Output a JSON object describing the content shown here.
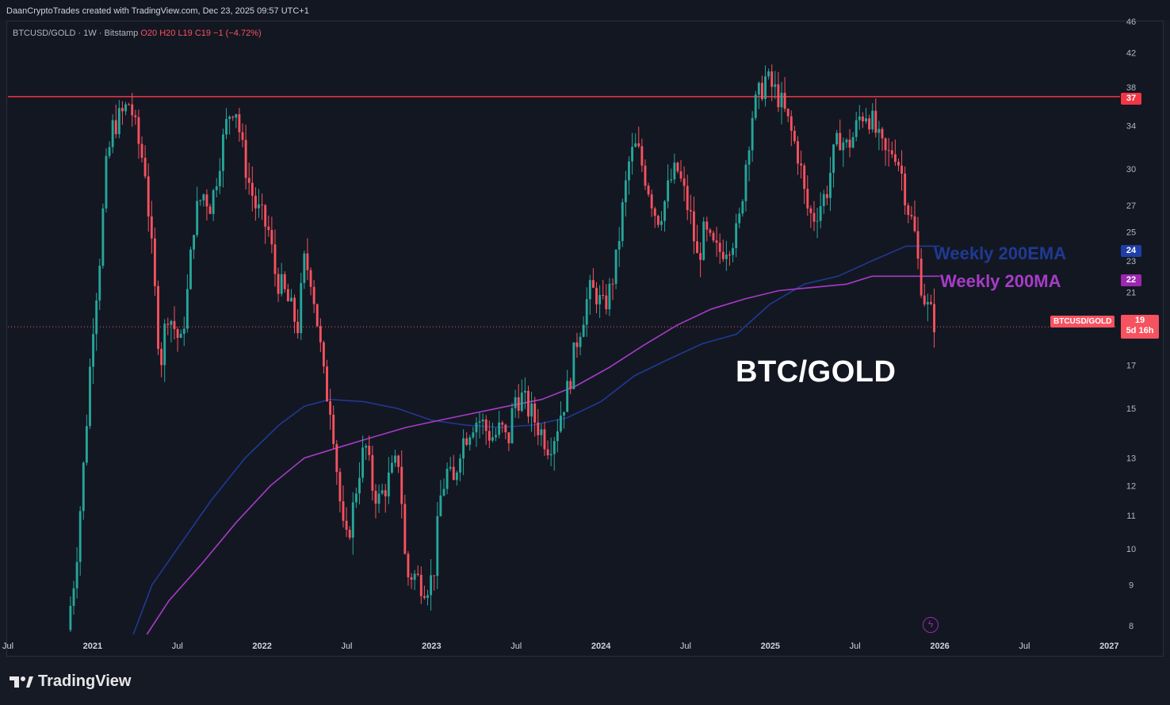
{
  "header": {
    "text": "DaanCryptoTrades created with TradingView.com, Dec 23, 2025 09:57 UTC+1"
  },
  "symbol_line": {
    "prefix": "BTCUSD/GOLD · 1W · Bitstamp",
    "ohlc": "O20  H20  L19  C19  −1 (−4.72%)"
  },
  "annotations": {
    "title": "BTC/GOLD",
    "ema_label": "Weekly 200EMA",
    "ma_label": "Weekly 200MA"
  },
  "price_tags": {
    "resistance": "37",
    "ema": "24",
    "ma": "22",
    "symbol": "BTCUSD/GOLD",
    "last": "19",
    "countdown": "5d 16h"
  },
  "footer": {
    "logo_text": "TradingView"
  },
  "icons": {
    "logo": "tradingview-logo-icon",
    "lightning": "lightning-icon"
  },
  "colors": {
    "up": "#26a69a",
    "down": "#f7525f",
    "resistance": "#f23645",
    "ema": "#1f3a93",
    "ma": "#a63cc7",
    "background": "#131722"
  },
  "chart_data": {
    "type": "candlestick",
    "timeframe": "1W",
    "yscale": "log",
    "ylim": [
      7.8,
      46
    ],
    "y_ticks": [
      8,
      9,
      10,
      11,
      12,
      13,
      15,
      17,
      19,
      21,
      23,
      25,
      27,
      30,
      34,
      38,
      42,
      46
    ],
    "x_ticks": [
      {
        "label": "Jul",
        "t": 2020.5
      },
      {
        "label": "2021",
        "t": 2021.0
      },
      {
        "label": "Jul",
        "t": 2021.5
      },
      {
        "label": "2022",
        "t": 2022.0
      },
      {
        "label": "Jul",
        "t": 2022.5
      },
      {
        "label": "2023",
        "t": 2023.0
      },
      {
        "label": "Jul",
        "t": 2023.5
      },
      {
        "label": "2024",
        "t": 2024.0
      },
      {
        "label": "Jul",
        "t": 2024.5
      },
      {
        "label": "2025",
        "t": 2025.0
      },
      {
        "label": "Jul",
        "t": 2025.5
      },
      {
        "label": "2026",
        "t": 2026.0
      },
      {
        "label": "Jul",
        "t": 2026.5
      },
      {
        "label": "2027",
        "t": 2027.0
      }
    ],
    "xlim": [
      2020.5,
      2027.05
    ],
    "resistance_level": 37,
    "last_price": 19,
    "price_path": [
      [
        2020.85,
        7.9
      ],
      [
        2020.9,
        9.5
      ],
      [
        2020.95,
        13
      ],
      [
        2021.0,
        19
      ],
      [
        2021.04,
        23
      ],
      [
        2021.08,
        30
      ],
      [
        2021.12,
        34
      ],
      [
        2021.17,
        35
      ],
      [
        2021.22,
        36.5
      ],
      [
        2021.26,
        33
      ],
      [
        2021.31,
        30
      ],
      [
        2021.36,
        22
      ],
      [
        2021.4,
        17
      ],
      [
        2021.44,
        20
      ],
      [
        2021.48,
        19
      ],
      [
        2021.52,
        18
      ],
      [
        2021.56,
        21
      ],
      [
        2021.6,
        26
      ],
      [
        2021.65,
        28
      ],
      [
        2021.7,
        27
      ],
      [
        2021.75,
        31
      ],
      [
        2021.8,
        35
      ],
      [
        2021.84,
        36.5
      ],
      [
        2021.88,
        32
      ],
      [
        2021.92,
        29
      ],
      [
        2021.96,
        27
      ],
      [
        2022.0,
        26
      ],
      [
        2022.04,
        25
      ],
      [
        2022.08,
        22
      ],
      [
        2022.13,
        21
      ],
      [
        2022.17,
        20
      ],
      [
        2022.21,
        19
      ],
      [
        2022.25,
        23
      ],
      [
        2022.29,
        22
      ],
      [
        2022.33,
        19
      ],
      [
        2022.37,
        16
      ],
      [
        2022.41,
        15
      ],
      [
        2022.45,
        12
      ],
      [
        2022.49,
        10
      ],
      [
        2022.53,
        11
      ],
      [
        2022.57,
        12.5
      ],
      [
        2022.61,
        13.5
      ],
      [
        2022.65,
        12
      ],
      [
        2022.69,
        11.5
      ],
      [
        2022.73,
        12
      ],
      [
        2022.77,
        12.5
      ],
      [
        2022.81,
        13
      ],
      [
        2022.85,
        9.2
      ],
      [
        2022.89,
        9.3
      ],
      [
        2022.93,
        9.1
      ],
      [
        2022.97,
        9.0
      ],
      [
        2023.01,
        9.2
      ],
      [
        2023.05,
        11.5
      ],
      [
        2023.09,
        12.5
      ],
      [
        2023.13,
        12
      ],
      [
        2023.17,
        13.5
      ],
      [
        2023.21,
        14
      ],
      [
        2023.25,
        14.5
      ],
      [
        2023.29,
        14.5
      ],
      [
        2023.33,
        14
      ],
      [
        2023.37,
        13.8
      ],
      [
        2023.41,
        14.2
      ],
      [
        2023.45,
        13.5
      ],
      [
        2023.49,
        15.5
      ],
      [
        2023.53,
        15.5
      ],
      [
        2023.57,
        15
      ],
      [
        2023.61,
        14.5
      ],
      [
        2023.65,
        14
      ],
      [
        2023.69,
        13.5
      ],
      [
        2023.73,
        14
      ],
      [
        2023.77,
        15
      ],
      [
        2023.81,
        16
      ],
      [
        2023.85,
        18
      ],
      [
        2023.89,
        19.5
      ],
      [
        2023.93,
        21
      ],
      [
        2023.97,
        21
      ],
      [
        2024.01,
        20
      ],
      [
        2024.05,
        21
      ],
      [
        2024.09,
        23
      ],
      [
        2024.13,
        27
      ],
      [
        2024.17,
        31
      ],
      [
        2024.21,
        32
      ],
      [
        2024.25,
        30
      ],
      [
        2024.29,
        28
      ],
      [
        2024.33,
        26
      ],
      [
        2024.37,
        27
      ],
      [
        2024.41,
        29
      ],
      [
        2024.45,
        30
      ],
      [
        2024.49,
        28
      ],
      [
        2024.53,
        26
      ],
      [
        2024.57,
        23
      ],
      [
        2024.61,
        25
      ],
      [
        2024.65,
        24
      ],
      [
        2024.69,
        23.5
      ],
      [
        2024.73,
        24
      ],
      [
        2024.77,
        24.5
      ],
      [
        2024.81,
        25
      ],
      [
        2024.85,
        30
      ],
      [
        2024.89,
        35
      ],
      [
        2024.93,
        37
      ],
      [
        2024.97,
        39
      ],
      [
        2025.01,
        38
      ],
      [
        2025.05,
        37
      ],
      [
        2025.09,
        35
      ],
      [
        2025.13,
        33
      ],
      [
        2025.17,
        31
      ],
      [
        2025.21,
        27
      ],
      [
        2025.25,
        26
      ],
      [
        2025.29,
        27
      ],
      [
        2025.33,
        28
      ],
      [
        2025.37,
        31
      ],
      [
        2025.41,
        33
      ],
      [
        2025.45,
        32
      ],
      [
        2025.49,
        33
      ],
      [
        2025.53,
        35
      ],
      [
        2025.57,
        35.5
      ],
      [
        2025.61,
        34
      ],
      [
        2025.65,
        32
      ],
      [
        2025.69,
        31
      ],
      [
        2025.73,
        32
      ],
      [
        2025.77,
        30
      ],
      [
        2025.81,
        27
      ],
      [
        2025.85,
        25
      ],
      [
        2025.87,
        23
      ],
      [
        2025.9,
        21
      ],
      [
        2025.93,
        20
      ],
      [
        2025.96,
        19.5
      ],
      [
        2025.98,
        19
      ]
    ],
    "series": [
      {
        "name": "Weekly 200EMA",
        "points": [
          [
            2021.24,
            7.8
          ],
          [
            2021.35,
            9.0
          ],
          [
            2021.5,
            10.0
          ],
          [
            2021.7,
            11.5
          ],
          [
            2021.9,
            13.0
          ],
          [
            2022.1,
            14.3
          ],
          [
            2022.25,
            15.1
          ],
          [
            2022.4,
            15.4
          ],
          [
            2022.6,
            15.3
          ],
          [
            2022.8,
            15.0
          ],
          [
            2023.0,
            14.5
          ],
          [
            2023.2,
            14.3
          ],
          [
            2023.4,
            14.2
          ],
          [
            2023.6,
            14.3
          ],
          [
            2023.8,
            14.6
          ],
          [
            2024.0,
            15.3
          ],
          [
            2024.2,
            16.5
          ],
          [
            2024.4,
            17.3
          ],
          [
            2024.6,
            18.1
          ],
          [
            2024.8,
            18.6
          ],
          [
            2025.0,
            20.3
          ],
          [
            2025.2,
            21.5
          ],
          [
            2025.4,
            22.0
          ],
          [
            2025.6,
            23.0
          ],
          [
            2025.8,
            24.0
          ],
          [
            2026.0,
            24.0
          ]
        ]
      },
      {
        "name": "Weekly 200MA",
        "points": [
          [
            2021.32,
            7.8
          ],
          [
            2021.45,
            8.6
          ],
          [
            2021.65,
            9.6
          ],
          [
            2021.85,
            10.8
          ],
          [
            2022.05,
            12.0
          ],
          [
            2022.25,
            13.0
          ],
          [
            2022.45,
            13.4
          ],
          [
            2022.65,
            13.8
          ],
          [
            2022.85,
            14.2
          ],
          [
            2023.05,
            14.5
          ],
          [
            2023.25,
            14.8
          ],
          [
            2023.45,
            15.1
          ],
          [
            2023.65,
            15.4
          ],
          [
            2023.85,
            16.0
          ],
          [
            2024.05,
            16.9
          ],
          [
            2024.25,
            18.0
          ],
          [
            2024.45,
            19.1
          ],
          [
            2024.65,
            20.0
          ],
          [
            2024.85,
            20.6
          ],
          [
            2025.05,
            21.1
          ],
          [
            2025.25,
            21.3
          ],
          [
            2025.45,
            21.5
          ],
          [
            2025.6,
            22.0
          ],
          [
            2025.8,
            22.0
          ],
          [
            2026.0,
            22.0
          ]
        ]
      }
    ]
  }
}
